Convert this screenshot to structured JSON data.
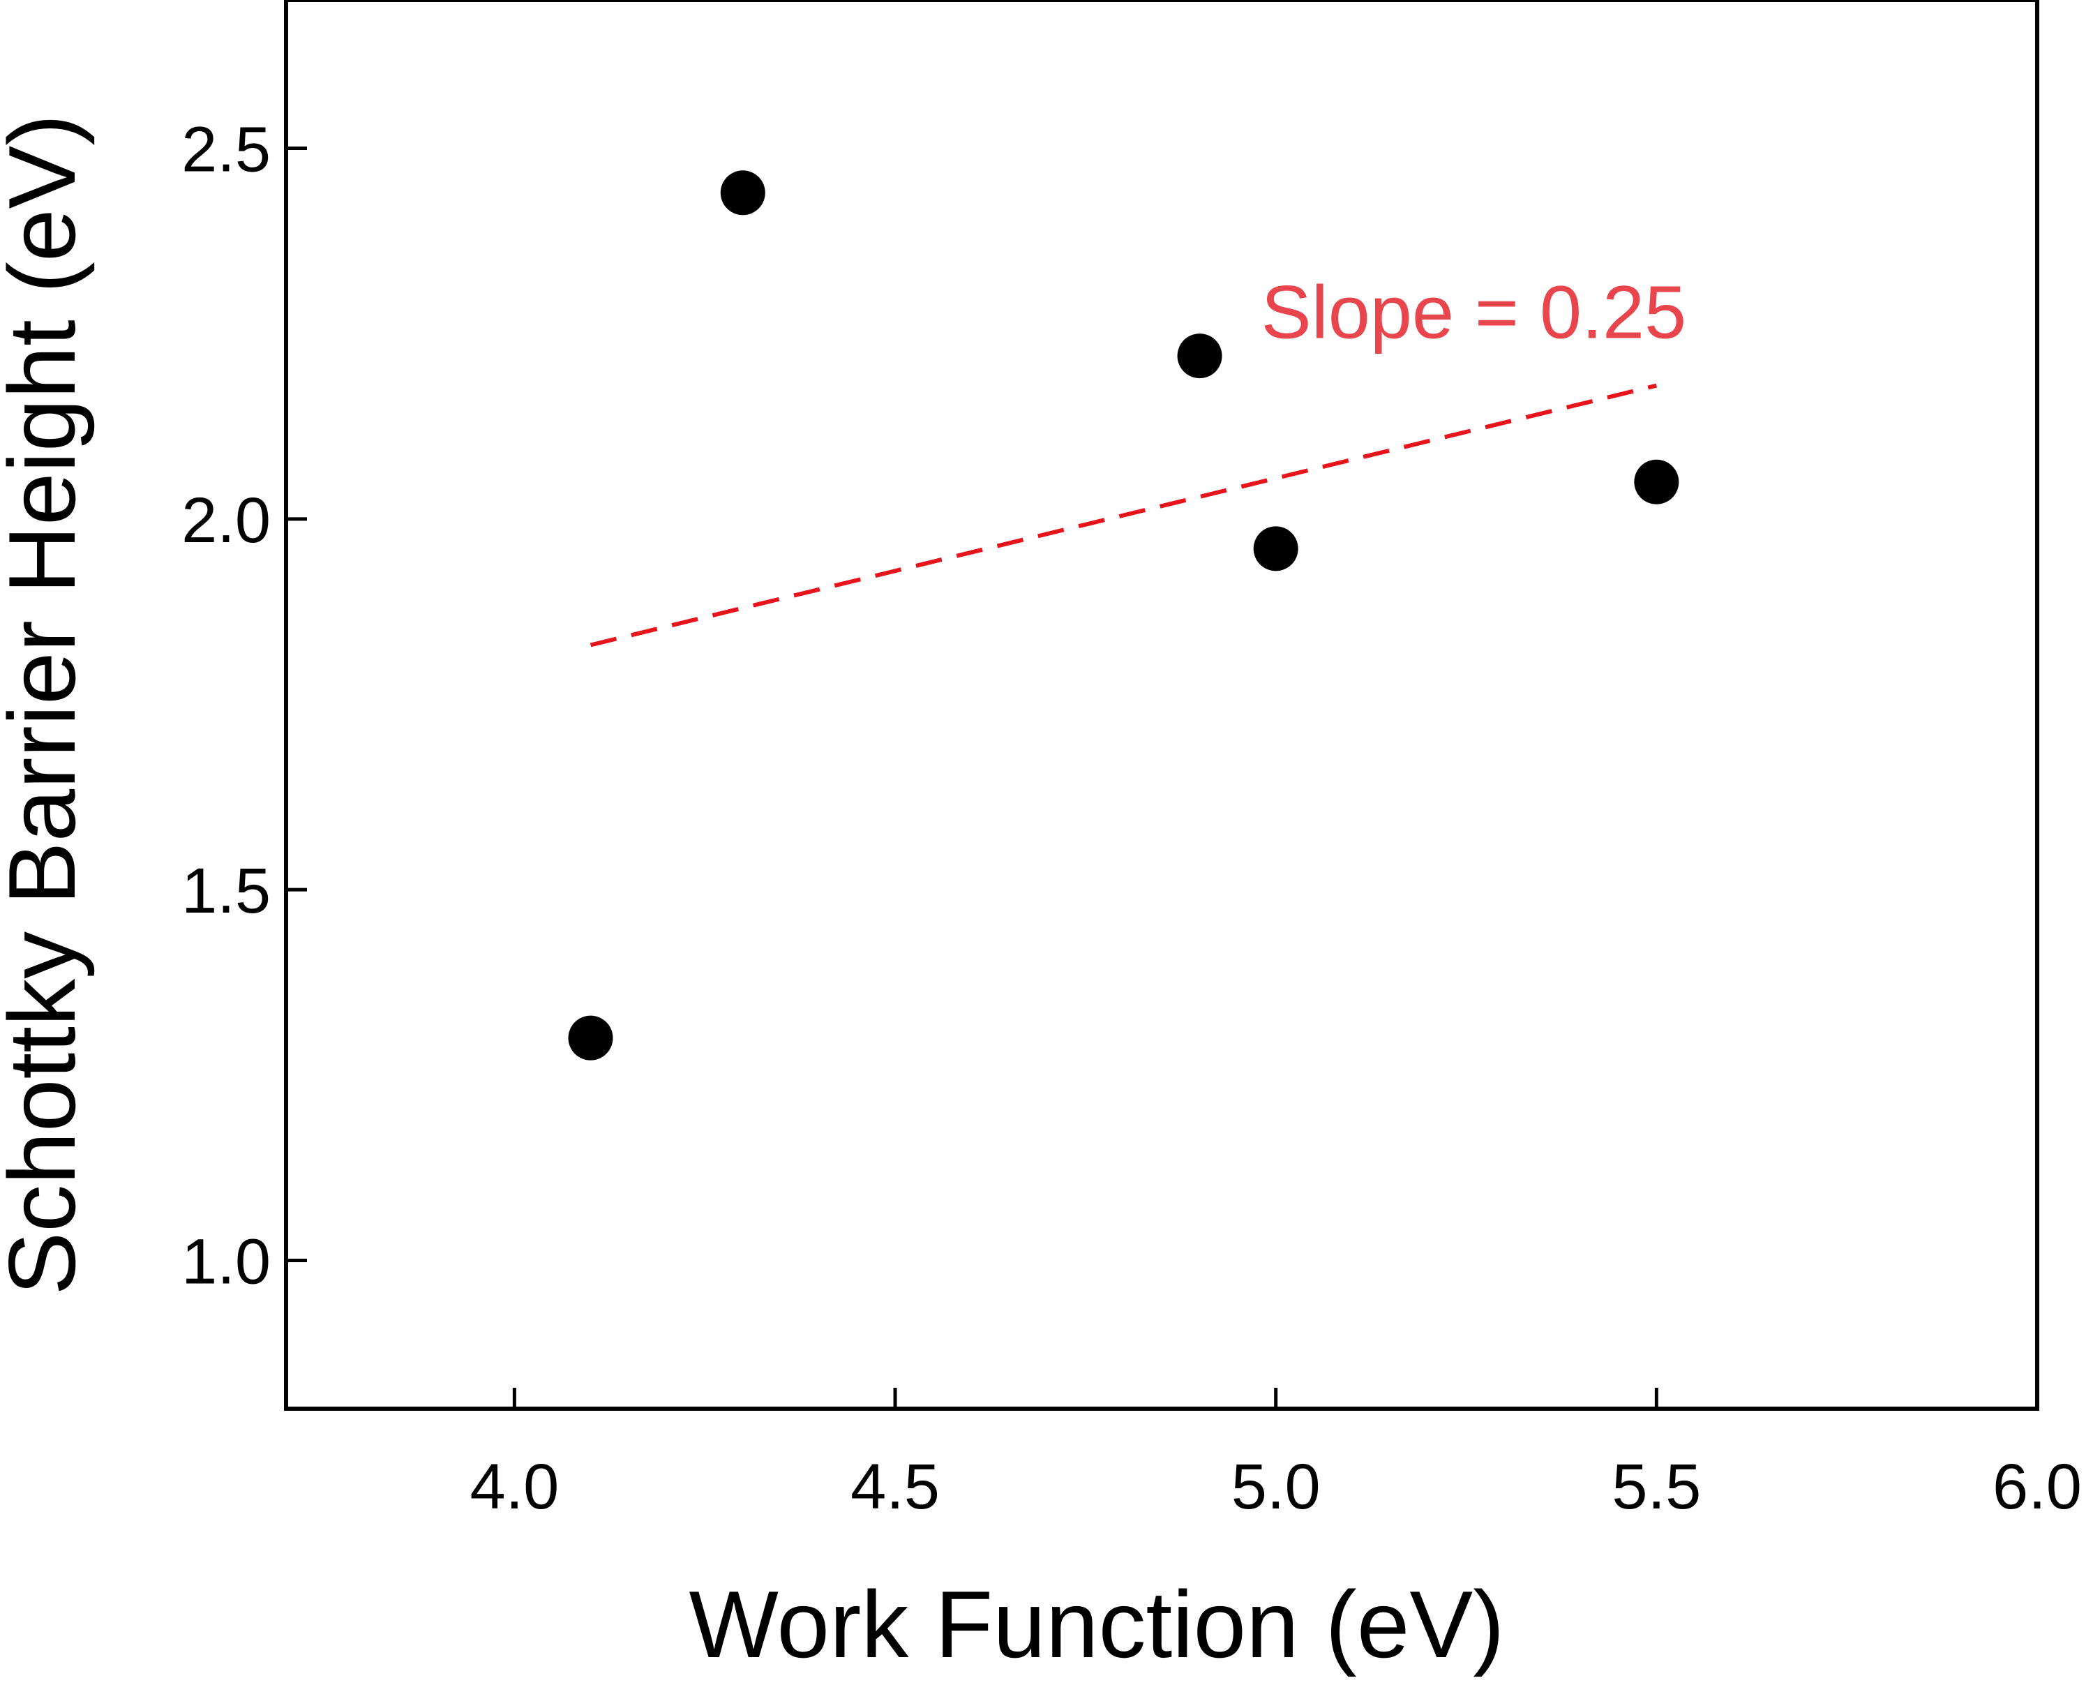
{
  "chart_data": {
    "type": "scatter",
    "title": "",
    "xlabel": "Work Function (eV)",
    "ylabel": "Schottky Barrier Height (eV)",
    "xlim": [
      3.7,
      6.0
    ],
    "ylim": [
      0.8,
      2.7
    ],
    "xticks": [
      4.0,
      4.5,
      5.0,
      5.5,
      6.0
    ],
    "xtick_labels": [
      "4.0",
      "4.5",
      "5.0",
      "5.5",
      "6.0"
    ],
    "yticks": [
      1.0,
      1.5,
      2.0,
      2.5
    ],
    "ytick_labels": [
      "1.0",
      "1.5",
      "2.0",
      "2.5"
    ],
    "grid": false,
    "series": [
      {
        "x": [
          4.1,
          4.3,
          4.9,
          5.0,
          5.5
        ],
        "y": [
          1.3,
          2.44,
          2.22,
          1.96,
          2.05
        ],
        "color": "#000000",
        "marker": "circle"
      }
    ],
    "fit_line": {
      "x": [
        4.1,
        5.5
      ],
      "y": [
        1.83,
        2.18
      ],
      "color": "#e8141c",
      "style": "dashed"
    },
    "annotations": [
      {
        "text": "Slope = 0.25",
        "x": 5.26,
        "y": 2.28,
        "color": "#e8454c"
      }
    ]
  }
}
